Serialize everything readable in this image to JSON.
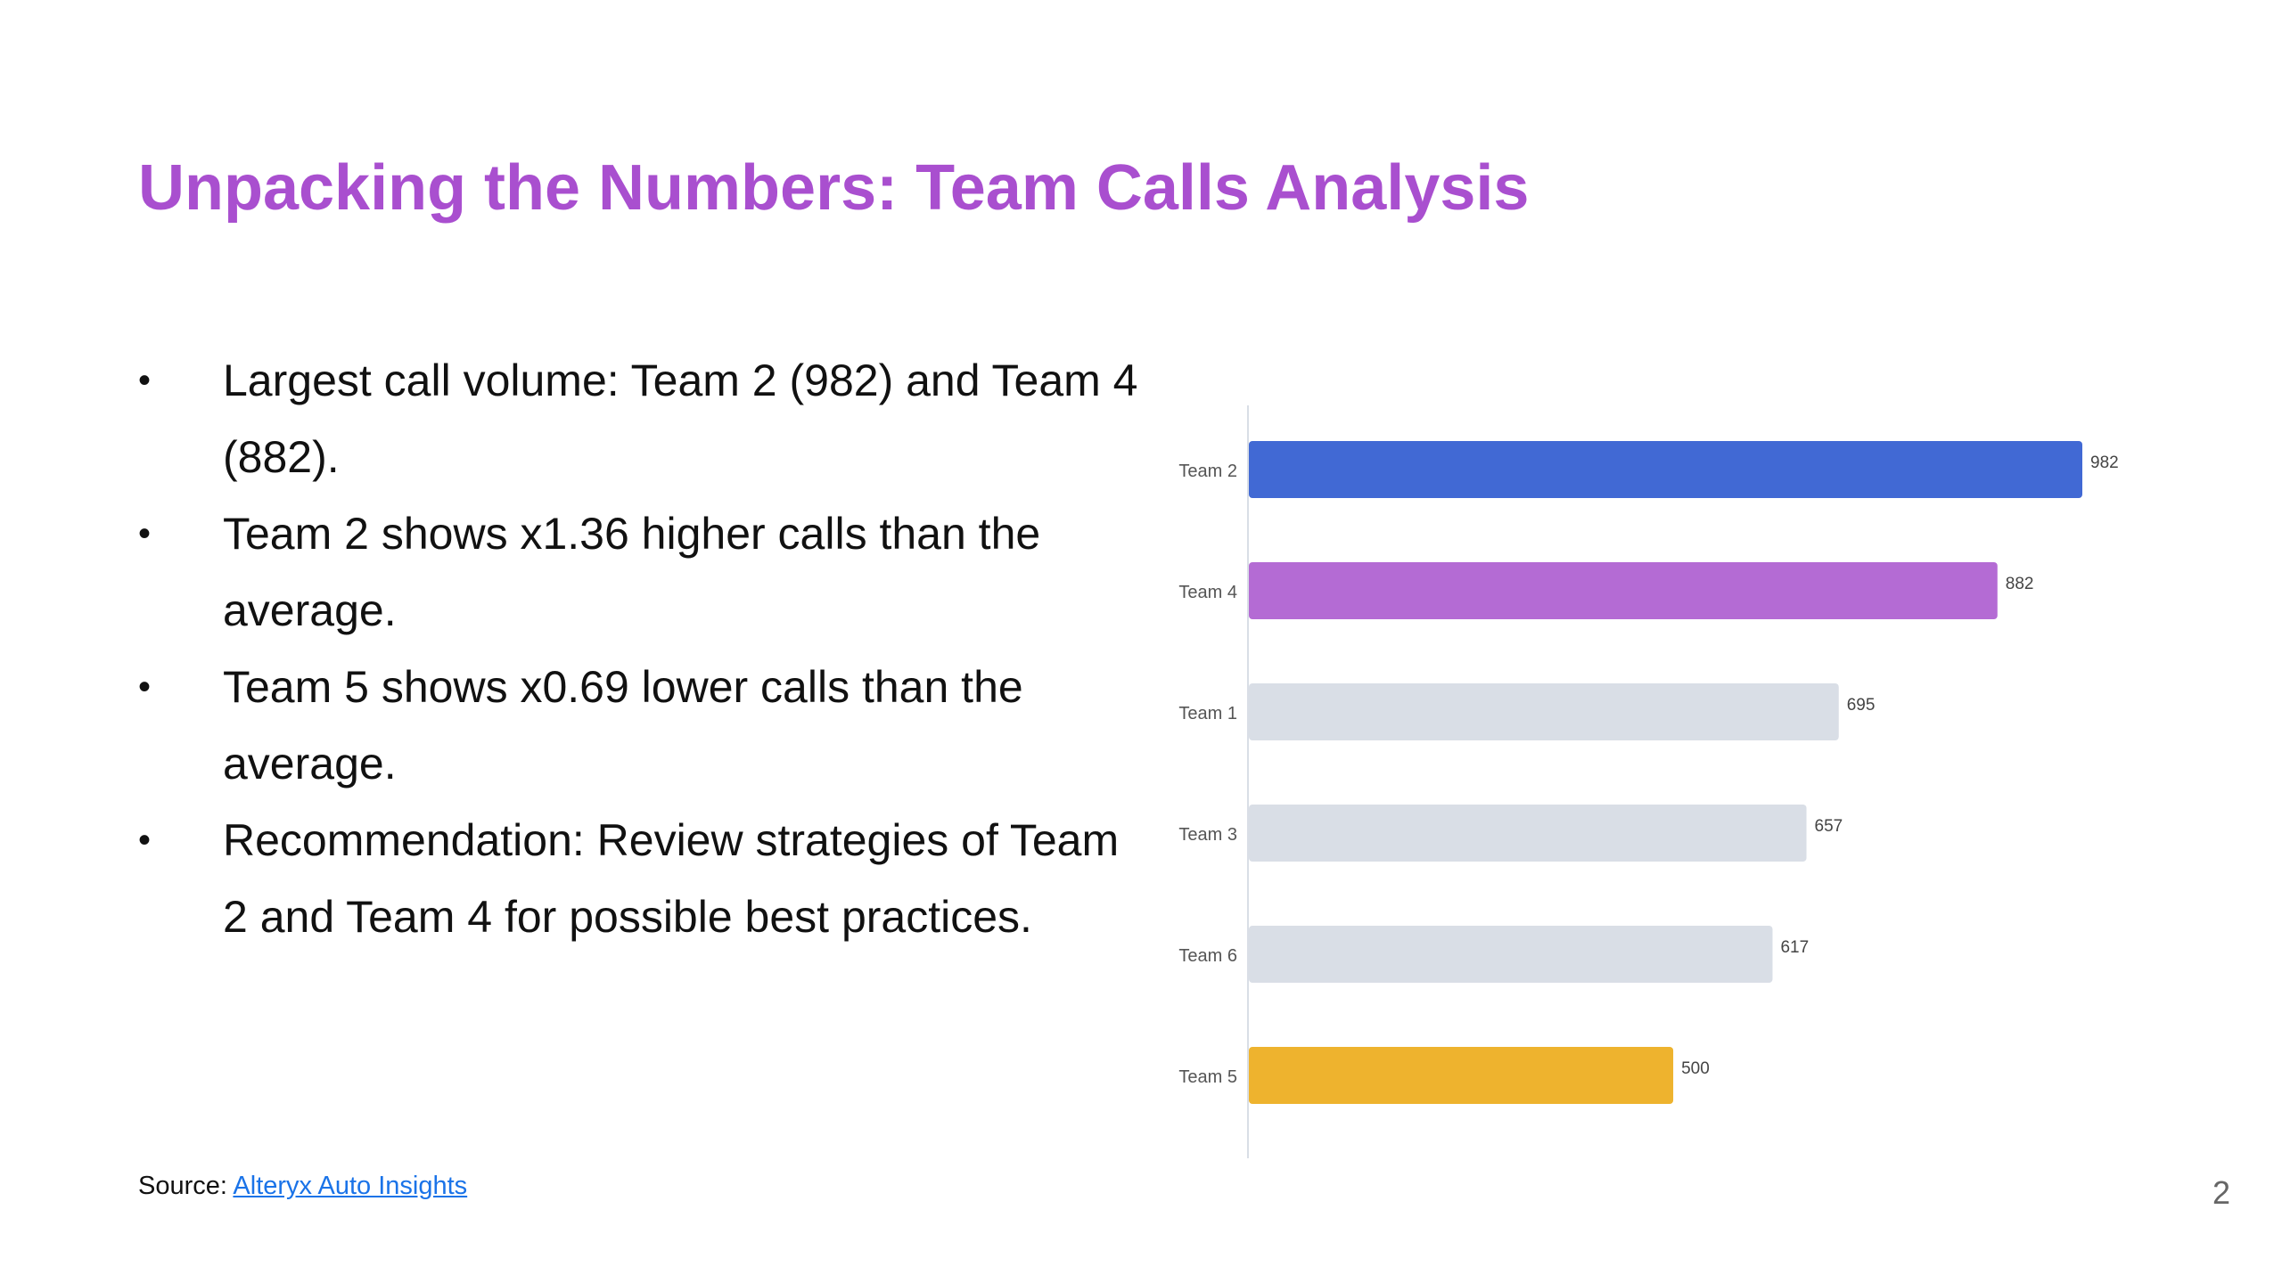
{
  "slide": {
    "title": "Unpacking the Numbers: Team Calls Analysis",
    "bullet_char": "•",
    "bullets": [
      "Largest call volume: Team 2 (982) and Team 4 (882).",
      "Team 2 shows x1.36 higher calls than the average.",
      "Team 5 shows x0.69 lower calls than the average.",
      "Recommendation: Review strategies of Team 2 and Team 4 for possible best practices."
    ],
    "source_label": "Source:",
    "source_link": "Alteryx Auto Insights",
    "page_number": "2"
  },
  "chart_data": {
    "type": "bar",
    "orientation": "horizontal",
    "categories": [
      "Team 2",
      "Team 4",
      "Team 1",
      "Team 3",
      "Team 6",
      "Team 5"
    ],
    "values": [
      982,
      882,
      695,
      657,
      617,
      500
    ],
    "data_labels": [
      "982",
      "882",
      "695",
      "657",
      "617",
      "500"
    ],
    "bar_colors": [
      "#4169d4",
      "#b46bd4",
      "#d9dee6",
      "#d9dee6",
      "#d9dee6",
      "#eeb32e"
    ],
    "title": "",
    "xlabel": "",
    "ylabel": "",
    "xlim": [
      0,
      982
    ],
    "grid": false,
    "legend": "none"
  }
}
